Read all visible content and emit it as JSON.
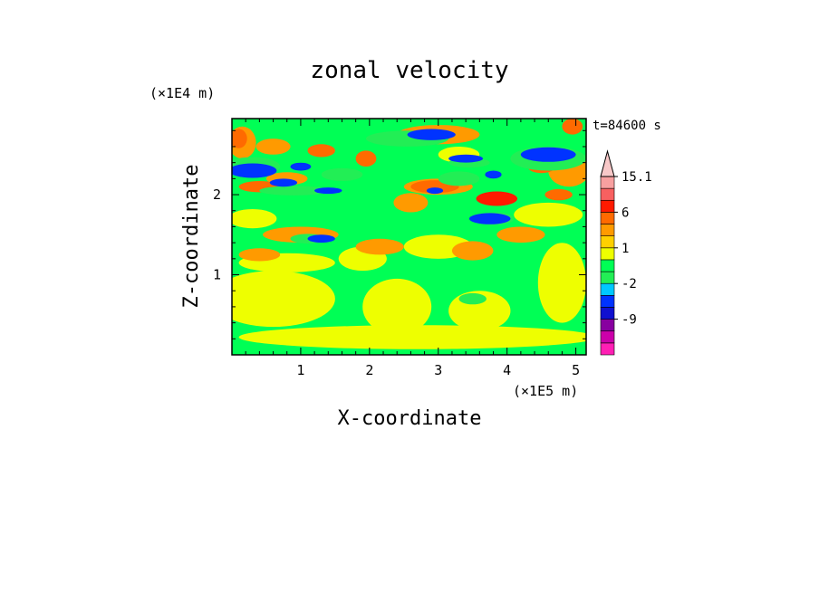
{
  "chart_data": {
    "type": "heatmap",
    "title": "zonal velocity",
    "xlabel": "X-coordinate",
    "ylabel": "Z-coordinate",
    "x_unit": "(×1E5 m)",
    "y_unit": "(×1E4 m)",
    "time_label": "t=84600 s",
    "xlim": [
      0,
      5.15
    ],
    "ylim": [
      0,
      2.95
    ],
    "x_ticks": [
      "1",
      "2",
      "3",
      "4",
      "5"
    ],
    "x_tick_values": [
      1,
      2,
      3,
      4,
      5
    ],
    "y_ticks": [
      "1",
      "2"
    ],
    "y_tick_values": [
      1,
      2
    ],
    "colorbar": {
      "labels": [
        "15.1",
        "6",
        "1",
        "-2",
        "-9"
      ],
      "label_values": [
        15.1,
        6,
        1,
        -2,
        -9
      ],
      "levels": [
        -15,
        -12,
        -9,
        -6,
        -3,
        -2,
        -1,
        0,
        1,
        2,
        3,
        6,
        9,
        12,
        15.1
      ],
      "colors": [
        "#ff1fb4",
        "#cc00aa",
        "#8800a0",
        "#1010d0",
        "#0033ff",
        "#00c8ff",
        "#22ee55",
        "#00ff55",
        "#eeff00",
        "#ffd000",
        "#ff9a00",
        "#ff6a00",
        "#ff1a00",
        "#f86060",
        "#f8a0a0",
        "#f8c8c8"
      ]
    },
    "background_value": -0.5,
    "background_color": "#00ff55",
    "regions": [
      {
        "x": 2.7,
        "y": 0.22,
        "rx": 2.6,
        "ry": 0.15,
        "v": 0.6
      },
      {
        "x": 0.6,
        "y": 0.7,
        "rx": 0.9,
        "ry": 0.35,
        "v": 0.7
      },
      {
        "x": 0.8,
        "y": 1.15,
        "rx": 0.7,
        "ry": 0.12,
        "v": 0.6
      },
      {
        "x": 2.4,
        "y": 0.6,
        "rx": 0.5,
        "ry": 0.35,
        "v": 0.6
      },
      {
        "x": 3.6,
        "y": 0.55,
        "rx": 0.45,
        "ry": 0.25,
        "v": 0.7
      },
      {
        "x": 4.8,
        "y": 0.9,
        "rx": 0.35,
        "ry": 0.5,
        "v": 0.6
      },
      {
        "x": 0.3,
        "y": 1.7,
        "rx": 0.35,
        "ry": 0.12,
        "v": 0.8
      },
      {
        "x": 1.9,
        "y": 1.2,
        "rx": 0.35,
        "ry": 0.15,
        "v": 0.6
      },
      {
        "x": 3.0,
        "y": 1.35,
        "rx": 0.5,
        "ry": 0.15,
        "v": 0.7
      },
      {
        "x": 4.6,
        "y": 1.75,
        "rx": 0.5,
        "ry": 0.15,
        "v": 0.6
      },
      {
        "x": 3.3,
        "y": 2.5,
        "rx": 0.3,
        "ry": 0.1,
        "v": 0.7
      },
      {
        "x": 3.5,
        "y": 0.7,
        "rx": 0.2,
        "ry": 0.07,
        "v": -1.5
      },
      {
        "x": 0.15,
        "y": 2.65,
        "rx": 0.2,
        "ry": 0.2,
        "v": 2.0
      },
      {
        "x": 0.6,
        "y": 2.6,
        "rx": 0.25,
        "ry": 0.1,
        "v": 2.5
      },
      {
        "x": 1.0,
        "y": 1.5,
        "rx": 0.55,
        "ry": 0.1,
        "v": 2.4
      },
      {
        "x": 0.4,
        "y": 1.25,
        "rx": 0.3,
        "ry": 0.08,
        "v": 2.4
      },
      {
        "x": 2.15,
        "y": 1.35,
        "rx": 0.35,
        "ry": 0.1,
        "v": 2.5
      },
      {
        "x": 3.0,
        "y": 2.1,
        "rx": 0.5,
        "ry": 0.1,
        "v": 2.3
      },
      {
        "x": 3.0,
        "y": 2.75,
        "rx": 0.6,
        "ry": 0.12,
        "v": 2.0
      },
      {
        "x": 4.9,
        "y": 2.3,
        "rx": 0.3,
        "ry": 0.2,
        "v": 2.3
      },
      {
        "x": 3.5,
        "y": 1.3,
        "rx": 0.3,
        "ry": 0.12,
        "v": 2.4
      },
      {
        "x": 4.2,
        "y": 1.5,
        "rx": 0.35,
        "ry": 0.1,
        "v": 2.5
      },
      {
        "x": 2.6,
        "y": 1.9,
        "rx": 0.25,
        "ry": 0.12,
        "v": 2.5
      },
      {
        "x": 0.8,
        "y": 2.2,
        "rx": 0.3,
        "ry": 0.08,
        "v": 2.3
      },
      {
        "x": 0.1,
        "y": 2.7,
        "rx": 0.12,
        "ry": 0.12,
        "v": 4.5
      },
      {
        "x": 1.3,
        "y": 2.55,
        "rx": 0.2,
        "ry": 0.08,
        "v": 4.0
      },
      {
        "x": 1.95,
        "y": 2.45,
        "rx": 0.15,
        "ry": 0.1,
        "v": 4.5
      },
      {
        "x": 2.95,
        "y": 2.1,
        "rx": 0.35,
        "ry": 0.08,
        "v": 4.5
      },
      {
        "x": 3.85,
        "y": 1.95,
        "rx": 0.3,
        "ry": 0.09,
        "v": 7.0
      },
      {
        "x": 4.5,
        "y": 2.35,
        "rx": 0.2,
        "ry": 0.08,
        "v": 4.5
      },
      {
        "x": 4.75,
        "y": 2.0,
        "rx": 0.2,
        "ry": 0.07,
        "v": 4.0
      },
      {
        "x": 4.95,
        "y": 2.85,
        "rx": 0.15,
        "ry": 0.1,
        "v": 4.5
      },
      {
        "x": 0.4,
        "y": 2.1,
        "rx": 0.3,
        "ry": 0.07,
        "v": 4.0
      },
      {
        "x": 0.3,
        "y": 2.35,
        "rx": 0.4,
        "ry": 0.12,
        "v": -1.5
      },
      {
        "x": 0.9,
        "y": 2.05,
        "rx": 0.5,
        "ry": 0.06,
        "v": -1.5
      },
      {
        "x": 1.6,
        "y": 2.25,
        "rx": 0.3,
        "ry": 0.08,
        "v": -1.5
      },
      {
        "x": 2.55,
        "y": 2.7,
        "rx": 0.6,
        "ry": 0.1,
        "v": -1.5
      },
      {
        "x": 3.3,
        "y": 2.2,
        "rx": 0.3,
        "ry": 0.09,
        "v": -1.5
      },
      {
        "x": 4.6,
        "y": 2.45,
        "rx": 0.55,
        "ry": 0.15,
        "v": -1.5
      },
      {
        "x": 1.1,
        "y": 1.45,
        "rx": 0.25,
        "ry": 0.06,
        "v": -1.5
      },
      {
        "x": 3.45,
        "y": 2.4,
        "rx": 0.3,
        "ry": 0.06,
        "v": -1.5
      },
      {
        "x": 3.8,
        "y": 1.7,
        "rx": 0.3,
        "ry": 0.08,
        "v": -1.5
      },
      {
        "x": 0.3,
        "y": 2.3,
        "rx": 0.35,
        "ry": 0.09,
        "v": -6.0
      },
      {
        "x": 0.75,
        "y": 2.15,
        "rx": 0.2,
        "ry": 0.05,
        "v": -6.0
      },
      {
        "x": 1.3,
        "y": 1.45,
        "rx": 0.2,
        "ry": 0.05,
        "v": -6.0
      },
      {
        "x": 1.0,
        "y": 2.35,
        "rx": 0.15,
        "ry": 0.05,
        "v": -6.0
      },
      {
        "x": 1.4,
        "y": 2.05,
        "rx": 0.2,
        "ry": 0.04,
        "v": -6.0
      },
      {
        "x": 2.9,
        "y": 2.75,
        "rx": 0.35,
        "ry": 0.07,
        "v": -6.0
      },
      {
        "x": 3.4,
        "y": 2.45,
        "rx": 0.25,
        "ry": 0.05,
        "v": -6.0
      },
      {
        "x": 3.75,
        "y": 1.7,
        "rx": 0.3,
        "ry": 0.07,
        "v": -6.0
      },
      {
        "x": 4.6,
        "y": 2.5,
        "rx": 0.4,
        "ry": 0.09,
        "v": -6.0
      },
      {
        "x": 3.8,
        "y": 2.25,
        "rx": 0.12,
        "ry": 0.05,
        "v": -6.0
      },
      {
        "x": 2.95,
        "y": 2.05,
        "rx": 0.12,
        "ry": 0.04,
        "v": -6.0
      }
    ]
  }
}
